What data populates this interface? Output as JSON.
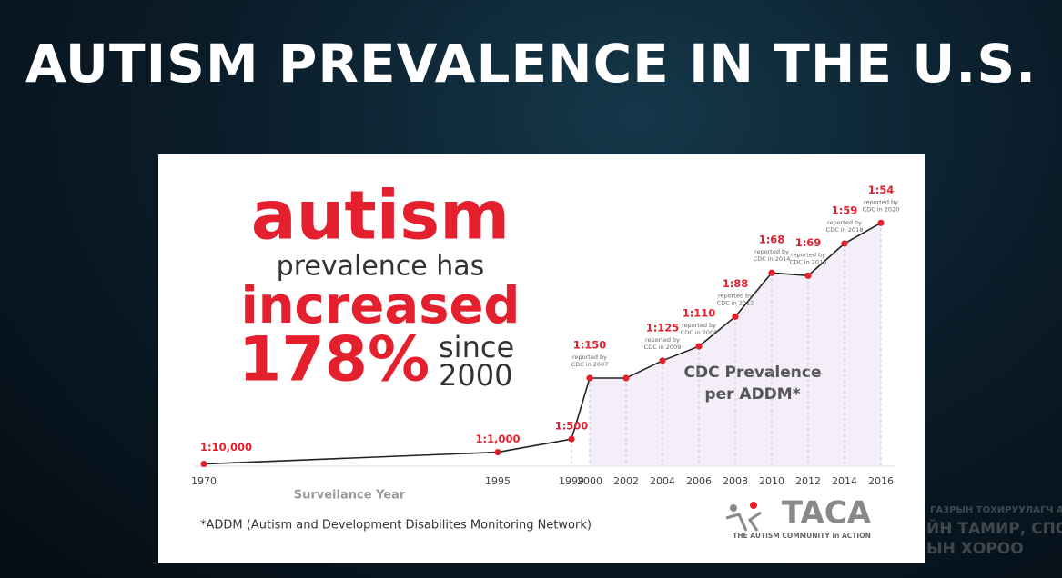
{
  "slide": {
    "title": "AUTISM PREVALENCE IN THE U.S."
  },
  "overlay": [
    "ГАЗРЫН ТОХИРУУЛАГЧ АГЕНТЛАГ",
    "ЙН ТАМИР, СПОРТЫН",
    "ЫН ХОРОО"
  ],
  "infographic": {
    "headline": [
      "autism",
      "prevalence has",
      "increased",
      "178%",
      "since",
      "2000"
    ],
    "footnote": "*ADDM (Autism and Development Disabilites Monitoring Network)",
    "logo": {
      "name": "TACA",
      "tagline": "THE AUTISM COMMUNITY in ACTION"
    }
  },
  "chart_data": {
    "type": "line",
    "xlabel": "Surveilance Year",
    "annotation": [
      "CDC Prevalence",
      "per ADDM*"
    ],
    "categories": [
      "1970",
      "1995",
      "1999",
      "2000",
      "2002",
      "2004",
      "2006",
      "2008",
      "2010",
      "2012",
      "2014",
      "2016"
    ],
    "values": [
      10000,
      1000,
      500,
      150,
      150,
      125,
      110,
      88,
      68,
      69,
      59,
      54
    ],
    "value_labels": [
      "1:10,000",
      "1:1,000",
      "1:500",
      "1:150",
      null,
      "1:125",
      "1:110",
      "1:88",
      "1:68",
      "1:69",
      "1:59",
      "1:54"
    ],
    "notes": [
      null,
      null,
      null,
      [
        "reported by",
        "CDC in 2007"
      ],
      null,
      [
        "reported by",
        "CDC in 2009"
      ],
      [
        "reported by",
        "CDC in 2009"
      ],
      [
        "reported by",
        "CDC in 2012"
      ],
      [
        "reported by",
        "CDC in 2014"
      ],
      [
        "reported by",
        "CDC in 2016"
      ],
      [
        "reported by",
        "CDC in 2018"
      ],
      [
        "reported by",
        "CDC in 2020"
      ]
    ],
    "color": "#e5202e",
    "line_color": "#222222"
  }
}
